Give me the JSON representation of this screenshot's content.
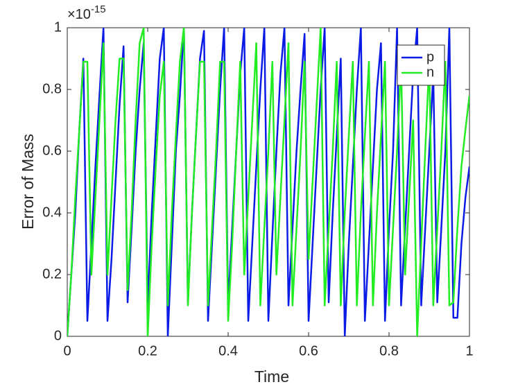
{
  "chart_data": {
    "type": "line",
    "xlabel": "Time",
    "ylabel": "Error of Mass",
    "y_multiplier": {
      "base": "×10",
      "power": "-15"
    },
    "xlim": [
      0,
      1
    ],
    "ylim": [
      0,
      1
    ],
    "xticks": [
      0,
      0.2,
      0.4,
      0.6,
      0.8,
      1
    ],
    "yticks": [
      0,
      0.2,
      0.4,
      0.6,
      0.8,
      1
    ],
    "legend": "northeast",
    "x": [
      0,
      0.01,
      0.02,
      0.03,
      0.04,
      0.05,
      0.06,
      0.07,
      0.08,
      0.09,
      0.1,
      0.11,
      0.12,
      0.13,
      0.14,
      0.15,
      0.16,
      0.17,
      0.18,
      0.19,
      0.2,
      0.21,
      0.22,
      0.23,
      0.24,
      0.25,
      0.26,
      0.27,
      0.28,
      0.29,
      0.3,
      0.31,
      0.32,
      0.33,
      0.34,
      0.35,
      0.36,
      0.37,
      0.38,
      0.39,
      0.4,
      0.41,
      0.42,
      0.43,
      0.44,
      0.45,
      0.46,
      0.47,
      0.48,
      0.49,
      0.5,
      0.51,
      0.52,
      0.53,
      0.54,
      0.55,
      0.56,
      0.57,
      0.58,
      0.59,
      0.6,
      0.61,
      0.62,
      0.63,
      0.64,
      0.65,
      0.66,
      0.67,
      0.68,
      0.69,
      0.7,
      0.71,
      0.72,
      0.73,
      0.74,
      0.75,
      0.76,
      0.77,
      0.78,
      0.79,
      0.8,
      0.81,
      0.82,
      0.83,
      0.84,
      0.85,
      0.86,
      0.87,
      0.88,
      0.89,
      0.9,
      0.91,
      0.92,
      0.93,
      0.94,
      0.95,
      0.96,
      0.97,
      0.98,
      0.99,
      1
    ],
    "series": [
      {
        "name": "p",
        "color": "#0b1be6",
        "values": [
          0,
          0.2,
          0.4,
          0.67,
          0.9,
          0.05,
          0.3,
          0.55,
          0.78,
          1,
          0.05,
          0.25,
          0.5,
          0.75,
          0.94,
          0.11,
          0.35,
          0.6,
          0.8,
          0.95,
          0.1,
          0.4,
          0.65,
          0.9,
          1,
          0,
          0.3,
          0.6,
          0.78,
          1,
          0.11,
          0.4,
          0.65,
          0.9,
          0.99,
          0.05,
          0.3,
          0.55,
          0.8,
          1,
          0.1,
          0.35,
          0.6,
          0.85,
          1,
          0.05,
          0.3,
          0.55,
          0.8,
          1,
          0.05,
          0.33,
          0.6,
          0.85,
          1,
          0.1,
          0.35,
          0.6,
          0.8,
          0.98,
          0.05,
          0.3,
          0.55,
          0.8,
          1,
          0.11,
          0.4,
          0.65,
          0.9,
          0,
          0.3,
          0.55,
          0.8,
          1,
          0.05,
          0.3,
          0.55,
          0.8,
          0.95,
          0.05,
          0.35,
          0.6,
          1,
          0.1,
          0.35,
          0.6,
          0.85,
          1,
          0.1,
          0.35,
          0.6,
          0.85,
          0.11,
          0.35,
          0.6,
          1,
          0.06,
          0.06,
          0.3,
          0.45,
          0.55
        ]
      },
      {
        "name": "n",
        "color": "#22ec22",
        "values": [
          0,
          0.2,
          0.45,
          0.67,
          0.89,
          0.89,
          0.2,
          0.45,
          0.7,
          0.95,
          0.2,
          0.45,
          0.7,
          0.9,
          0.9,
          0.15,
          0.4,
          0.7,
          0.95,
          1,
          0,
          0.3,
          0.55,
          0.78,
          0.89,
          0.1,
          0.4,
          0.65,
          0.89,
          1,
          0.1,
          0.4,
          0.65,
          0.89,
          0.89,
          0.1,
          0.35,
          0.6,
          0.89,
          0.89,
          0.05,
          0.3,
          0.6,
          0.89,
          0.2,
          0.45,
          0.7,
          0.95,
          0.1,
          0.35,
          0.6,
          0.89,
          0.2,
          0.45,
          0.7,
          0.95,
          0.1,
          0.35,
          0.6,
          0.89,
          0.25,
          0.5,
          0.75,
          1,
          0.1,
          0.35,
          0.6,
          0.89,
          0.1,
          0.4,
          0.65,
          0.89,
          0.1,
          0.4,
          0.65,
          0.89,
          0.1,
          0.4,
          0.65,
          0.89,
          0.1,
          0.35,
          0.6,
          0.89,
          0.2,
          0.45,
          0.7,
          0,
          0.3,
          0.6,
          0.89,
          0.1,
          0.35,
          0.6,
          0.89,
          0.1,
          0.11,
          0.35,
          0.55,
          0.67,
          0.78
        ]
      }
    ]
  }
}
